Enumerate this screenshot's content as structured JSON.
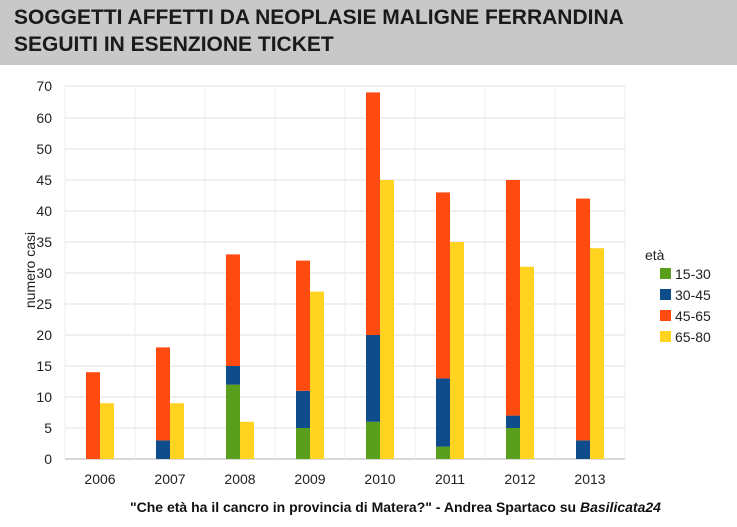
{
  "chart_data": {
    "type": "bar",
    "title": "SOGGETTI AFFETTI DA NEOPLASIE MALIGNE FERRANDINA",
    "subtitle": "SEGUITI IN ESENZIONE TICKET",
    "ylabel": "numero casi",
    "xlabel": "",
    "ylim": [
      0,
      70
    ],
    "yticks": [
      0,
      5,
      10,
      15,
      20,
      25,
      30,
      35,
      40,
      45,
      50,
      60,
      70
    ],
    "categories": [
      "2006",
      "2007",
      "2008",
      "2009",
      "2010",
      "2011",
      "2012",
      "2013"
    ],
    "legend_title": "età",
    "legend_position": "right",
    "grid": true,
    "stacked_bar": {
      "description_series": [
        "15-30",
        "30-45",
        "45-65"
      ],
      "series": [
        {
          "name": "15-30",
          "color": "#5a9e1e",
          "values": [
            0,
            0,
            12,
            5,
            6,
            2,
            5,
            0
          ]
        },
        {
          "name": "30-45",
          "color": "#0f4c8c",
          "values": [
            0,
            3,
            3,
            6,
            14,
            11,
            2,
            3
          ]
        },
        {
          "name": "45-65",
          "color": "#ff4a10",
          "values": [
            14,
            15,
            18,
            21,
            48,
            30,
            38,
            39
          ]
        }
      ]
    },
    "single_bar": {
      "series": [
        {
          "name": "65-80",
          "color": "#ffd320",
          "values": [
            9,
            9,
            6,
            27,
            45,
            35,
            31,
            34
          ]
        }
      ]
    },
    "legend": [
      {
        "name": "15-30",
        "color": "#5a9e1e"
      },
      {
        "name": "30-45",
        "color": "#0f4c8c"
      },
      {
        "name": "45-65",
        "color": "#ff4a10"
      },
      {
        "name": "65-80",
        "color": "#ffd320"
      }
    ]
  },
  "credit": {
    "text": "\"Che età ha il cancro in provincia di Matera?\" - Andrea Spartaco su ",
    "source": "Basilicata24"
  }
}
